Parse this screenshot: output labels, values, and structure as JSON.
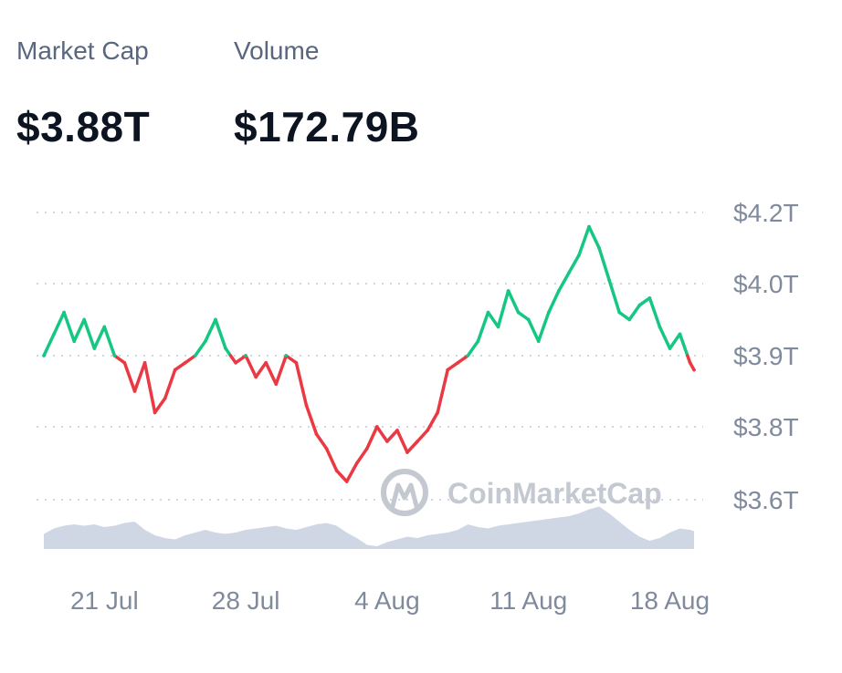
{
  "stats": {
    "market_cap": {
      "label": "Market Cap",
      "value": "$3.88T"
    },
    "volume": {
      "label": "Volume",
      "value": "$172.79B"
    }
  },
  "watermark": "CoinMarketCap",
  "colors": {
    "up": "#16c784",
    "down": "#ea3943",
    "volume": "#cfd6e4",
    "grid": "#cfd6e4",
    "tick_text": "#808a9d",
    "label_text": "#58667e",
    "value_text": "#0d1421"
  },
  "chart_data": {
    "type": "line",
    "title": "",
    "xlabel": "",
    "ylabel": "",
    "baseline": 3.9,
    "y_tick_labels": [
      "$4.2T",
      "$4.0T",
      "$3.9T",
      "$3.8T",
      "$3.6T"
    ],
    "x_tick_labels": [
      "21 Jul",
      "28 Jul",
      "4 Aug",
      "11 Aug",
      "18 Aug"
    ],
    "x_tick_days": [
      3,
      10,
      17,
      24,
      31
    ],
    "x": [
      0,
      0.5,
      1,
      1.5,
      2,
      2.5,
      3,
      3.5,
      4,
      4.5,
      5,
      5.5,
      6,
      6.5,
      7,
      7.5,
      8,
      8.5,
      9,
      9.5,
      10,
      10.5,
      11,
      11.5,
      12,
      12.5,
      13,
      13.5,
      14,
      14.5,
      15,
      15.5,
      16,
      16.5,
      17,
      17.5,
      18,
      18.5,
      19,
      19.5,
      20,
      20.5,
      21,
      21.5,
      22,
      22.5,
      23,
      23.5,
      24,
      24.5,
      25,
      25.5,
      26,
      26.5,
      27,
      27.5,
      28,
      28.5,
      29,
      29.5,
      30,
      30.5,
      31,
      31.5,
      32,
      32.2
    ],
    "series": [
      {
        "values": [
          3.9,
          3.93,
          3.96,
          3.92,
          3.95,
          3.91,
          3.94,
          3.9,
          3.89,
          3.85,
          3.89,
          3.82,
          3.84,
          3.88,
          3.89,
          3.9,
          3.92,
          3.95,
          3.91,
          3.89,
          3.9,
          3.87,
          3.89,
          3.86,
          3.9,
          3.89,
          3.83,
          3.78,
          3.74,
          3.68,
          3.65,
          3.7,
          3.74,
          3.8,
          3.76,
          3.79,
          3.73,
          3.76,
          3.79,
          3.82,
          3.88,
          3.89,
          3.9,
          3.92,
          3.96,
          3.94,
          3.99,
          3.96,
          3.95,
          3.92,
          3.96,
          3.99,
          4.03,
          4.08,
          4.16,
          4.1,
          4.01,
          3.96,
          3.95,
          3.97,
          3.98,
          3.94,
          3.91,
          3.93,
          3.89,
          3.88
        ]
      }
    ],
    "volume": {
      "values": [
        0.55,
        0.75,
        0.85,
        0.9,
        0.85,
        0.9,
        0.8,
        0.85,
        0.95,
        1.0,
        0.7,
        0.5,
        0.4,
        0.35,
        0.5,
        0.6,
        0.7,
        0.6,
        0.55,
        0.6,
        0.7,
        0.75,
        0.8,
        0.85,
        0.75,
        0.7,
        0.8,
        0.9,
        0.95,
        0.85,
        0.6,
        0.4,
        0.15,
        0.1,
        0.25,
        0.35,
        0.45,
        0.4,
        0.5,
        0.55,
        0.6,
        0.7,
        0.9,
        0.8,
        0.75,
        0.85,
        0.9,
        0.95,
        1.0,
        1.05,
        1.1,
        1.15,
        1.2,
        1.3,
        1.45,
        1.55,
        1.3,
        1.0,
        0.7,
        0.45,
        0.3,
        0.4,
        0.6,
        0.75,
        0.7,
        0.65
      ]
    }
  }
}
